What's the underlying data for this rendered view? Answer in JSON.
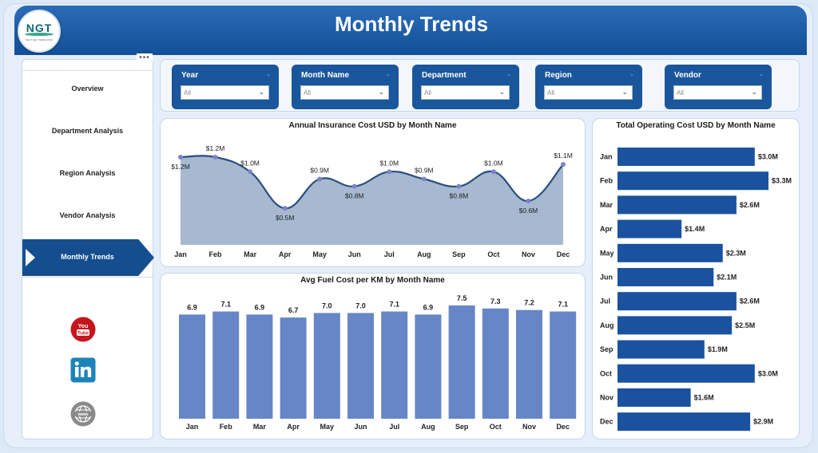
{
  "header": {
    "title": "Monthly Trends",
    "logo_text": "NGT",
    "logo_sub": "NEXT GEN TEMPLATES"
  },
  "sidebar": {
    "menu_dots": "•••",
    "items": [
      {
        "label": "Overview",
        "active": false
      },
      {
        "label": "Department Analysis",
        "active": false
      },
      {
        "label": "Region Analysis",
        "active": false
      },
      {
        "label": "Vendor Analysis",
        "active": false
      },
      {
        "label": "Monthly Trends",
        "active": true
      }
    ],
    "social": [
      {
        "icon": "youtube-icon",
        "color": "#c4161c"
      },
      {
        "icon": "linkedin-icon",
        "color": "#0a66c2"
      },
      {
        "icon": "website-icon",
        "color": "#8a8a8a"
      }
    ]
  },
  "filters": [
    {
      "label": "Year",
      "value": "All"
    },
    {
      "label": "Month Name",
      "value": "All"
    },
    {
      "label": "Department",
      "value": "All"
    },
    {
      "label": "Region",
      "value": "All"
    },
    {
      "label": "Vendor",
      "value": "All"
    }
  ],
  "colors": {
    "navy": "#154e8f",
    "bar_light": "#6686c8",
    "area_fill": "#a6b9d1",
    "area_line": "#2a4e7e",
    "hbar": "#1a52a0"
  },
  "chart_data": [
    {
      "type": "area",
      "title": "Annual Insurance Cost USD by Month Name",
      "categories": [
        "Jan",
        "Feb",
        "Mar",
        "Apr",
        "May",
        "Jun",
        "Jul",
        "Aug",
        "Sep",
        "Oct",
        "Nov",
        "Dec"
      ],
      "values": [
        1.2,
        1.2,
        1.0,
        0.5,
        0.9,
        0.8,
        1.0,
        0.9,
        0.8,
        1.0,
        0.6,
        1.1
      ],
      "data_labels": [
        "$1.2M",
        "$1.2M",
        "$1.0M",
        "$0.5M",
        "$0.9M",
        "$0.8M",
        "$1.0M",
        "$0.9M",
        "$0.8M",
        "$1.0M",
        "$0.6M",
        "$1.1M"
      ],
      "unit": "USD millions"
    },
    {
      "type": "bar",
      "title": "Avg Fuel Cost per KM by Month Name",
      "categories": [
        "Jan",
        "Feb",
        "Mar",
        "Apr",
        "May",
        "Jun",
        "Jul",
        "Aug",
        "Sep",
        "Oct",
        "Nov",
        "Dec"
      ],
      "values": [
        6.9,
        7.1,
        6.9,
        6.7,
        7.0,
        7.0,
        7.1,
        6.9,
        7.5,
        7.3,
        7.2,
        7.1
      ],
      "data_labels": [
        "6.9",
        "7.1",
        "6.9",
        "6.7",
        "7.0",
        "7.0",
        "7.1",
        "6.9",
        "7.5",
        "7.3",
        "7.2",
        "7.1"
      ]
    },
    {
      "type": "bar",
      "orientation": "horizontal",
      "title": "Total Operating Cost USD by Month Name",
      "categories": [
        "Jan",
        "Feb",
        "Mar",
        "Apr",
        "May",
        "Jun",
        "Jul",
        "Aug",
        "Sep",
        "Oct",
        "Nov",
        "Dec"
      ],
      "values": [
        3.0,
        3.3,
        2.6,
        1.4,
        2.3,
        2.1,
        2.6,
        2.5,
        1.9,
        3.0,
        1.6,
        2.9
      ],
      "data_labels": [
        "$3.0M",
        "$3.3M",
        "$2.6M",
        "$1.4M",
        "$2.3M",
        "$2.1M",
        "$2.6M",
        "$2.5M",
        "$1.9M",
        "$3.0M",
        "$1.6M",
        "$2.9M"
      ],
      "unit": "USD millions"
    }
  ]
}
